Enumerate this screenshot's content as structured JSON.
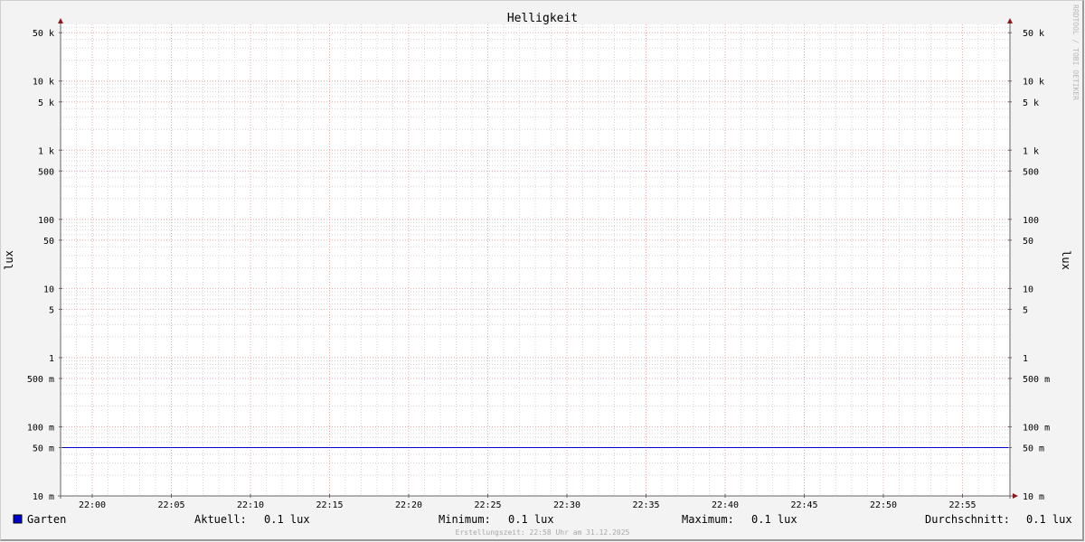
{
  "chart_data": {
    "type": "line",
    "title": "Helligkeit",
    "ylabel": "lux",
    "ylabel_right": "lux",
    "yscale": "log",
    "ylim": [
      0.01,
      66000
    ],
    "xlim": [
      "21:58",
      "22:58"
    ],
    "x_ticks": [
      "22:00",
      "22:05",
      "22:10",
      "22:15",
      "22:20",
      "22:25",
      "22:30",
      "22:35",
      "22:40",
      "22:45",
      "22:50",
      "22:55"
    ],
    "y_ticks": [
      {
        "value": 50000,
        "label": "50 k"
      },
      {
        "value": 10000,
        "label": "10 k"
      },
      {
        "value": 5000,
        "label": "5 k"
      },
      {
        "value": 1000,
        "label": "1 k"
      },
      {
        "value": 500,
        "label": "500"
      },
      {
        "value": 100,
        "label": "100"
      },
      {
        "value": 50,
        "label": "50"
      },
      {
        "value": 10,
        "label": "10"
      },
      {
        "value": 5,
        "label": "5"
      },
      {
        "value": 1,
        "label": "1"
      },
      {
        "value": 0.5,
        "label": "500 m"
      },
      {
        "value": 0.1,
        "label": "100 m"
      },
      {
        "value": 0.05,
        "label": "50 m"
      },
      {
        "value": 0.01,
        "label": "10 m"
      }
    ],
    "grid": true,
    "series": [
      {
        "name": "Garten",
        "color": "#0000cc",
        "x": [
          "21:58",
          "22:58"
        ],
        "values": [
          0.05,
          0.05
        ]
      }
    ],
    "legend": {
      "position": "bottom",
      "name": "Garten",
      "stats": [
        {
          "label": "Aktuell:",
          "value": "0.1 lux"
        },
        {
          "label": "Minimum:",
          "value": "0.1 lux"
        },
        {
          "label": "Maximum:",
          "value": "0.1 lux"
        },
        {
          "label": "Durchschnitt:",
          "value": "0.1 lux"
        }
      ]
    },
    "footer": "Erstellungszeit: 22:58 Uhr am 31.12.2025",
    "watermark": "RRDTOOL / TOBI OETIKER"
  }
}
